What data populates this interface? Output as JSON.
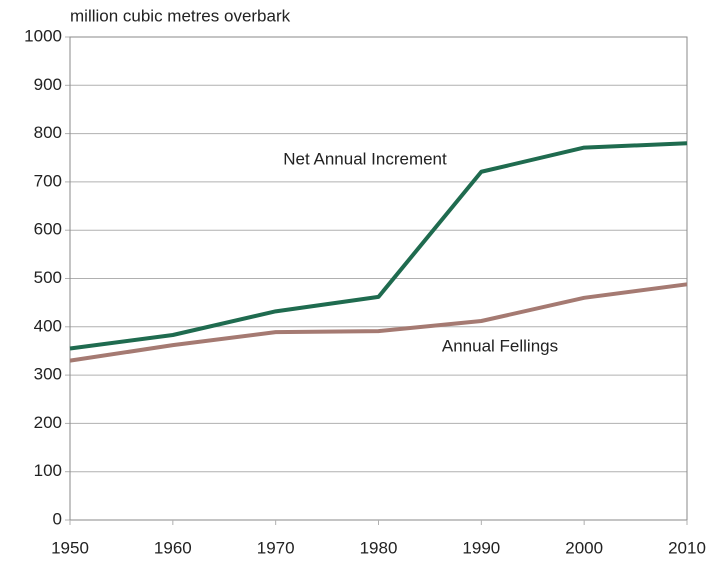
{
  "chart_data": {
    "type": "line",
    "y_axis_label": "million cubic metres overbark",
    "x": [
      1950,
      1960,
      1970,
      1980,
      1990,
      2000,
      2010
    ],
    "series": [
      {
        "name": "Net Annual Increment",
        "color": "#1f6b4f",
        "values": [
          355,
          383,
          432,
          462,
          721,
          771,
          780
        ]
      },
      {
        "name": "Annual Fellings",
        "color": "#a57a72",
        "values": [
          330,
          362,
          389,
          391,
          412,
          460,
          488
        ]
      }
    ],
    "xlim": [
      1950,
      2010
    ],
    "xticks": [
      1950,
      1960,
      1970,
      1980,
      1990,
      2000,
      2010
    ],
    "ylim": [
      0,
      1000
    ],
    "yticks": [
      0,
      100,
      200,
      300,
      400,
      500,
      600,
      700,
      800,
      900,
      1000
    ],
    "grid": true
  }
}
